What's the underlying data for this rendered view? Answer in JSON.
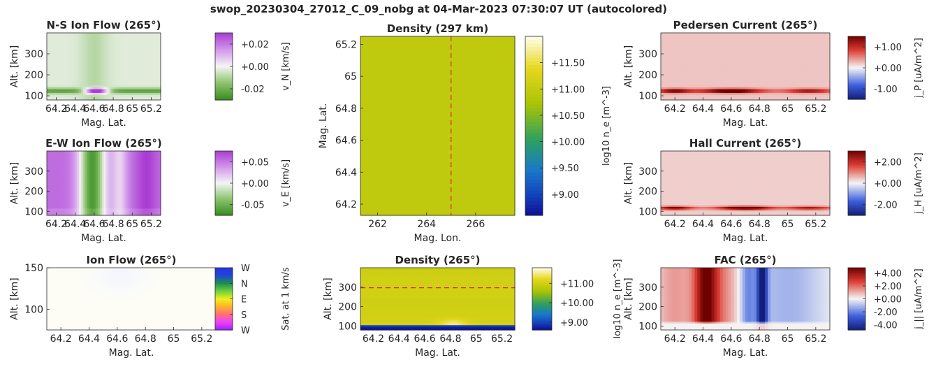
{
  "figure_title": "swop_20230304_27012_C_09_nobg at 04-Mar-2023 07:30:07 UT (autocolored)",
  "chart_data": [
    {
      "id": "ns_ion_flow",
      "type": "heatmap",
      "title": "N-S Ion Flow (265°)",
      "xlabel": "Mag. Lat.",
      "ylabel": "Alt. [km]",
      "xlim": [
        64.1,
        65.3
      ],
      "ylim": [
        80,
        400
      ],
      "xticks": [
        "64.2",
        "64.4",
        "64.6",
        "64.8",
        "65",
        "65.2"
      ],
      "xtick_values": [
        64.2,
        64.4,
        64.6,
        64.8,
        65.0,
        65.2
      ],
      "yticks": [
        "100",
        "200",
        "300"
      ],
      "ytick_values": [
        100,
        200,
        300
      ],
      "colorbar": {
        "label": "v_N [km/s]",
        "ticks": [
          "+0.02",
          "+0.00",
          "-0.02"
        ],
        "tick_values": [
          0.02,
          0.0,
          -0.02
        ],
        "range": [
          -0.03,
          0.03
        ],
        "colormap": "green-white-purple"
      },
      "field": "ns_flow"
    },
    {
      "id": "density_map",
      "type": "heatmap",
      "title": "Density (297 km)",
      "xlabel": "Mag. Lon.",
      "ylabel": "Mag. Lat.",
      "xlim": [
        261.3,
        267.6
      ],
      "ylim": [
        64.13,
        65.25
      ],
      "xticks": [
        "262",
        "264",
        "266"
      ],
      "xtick_values": [
        262,
        264,
        266
      ],
      "yticks": [
        "64.2",
        "64.4",
        "64.6",
        "64.8",
        "65",
        "65.2"
      ],
      "ytick_values": [
        64.2,
        64.4,
        64.6,
        64.8,
        65.0,
        65.2
      ],
      "colorbar": {
        "label": "log10 n_e [m^-3]",
        "ticks": [
          "+11.50",
          "+11.00",
          "+10.50",
          "+10.00",
          "+9.50",
          "+9.00"
        ],
        "tick_values": [
          11.5,
          11.0,
          10.5,
          10.0,
          9.5,
          9.0
        ],
        "range": [
          8.6,
          12.0
        ],
        "colormap": "parula"
      },
      "value": 10.95,
      "marker_line": {
        "axis": "x",
        "value": 265,
        "style": "dashed",
        "color": "#d62728"
      },
      "field": "uniform"
    },
    {
      "id": "pedersen_current",
      "type": "heatmap",
      "title": "Pedersen Current (265°)",
      "xlabel": "Mag. Lat.",
      "ylabel": "Alt. [km]",
      "xlim": [
        64.1,
        65.3
      ],
      "ylim": [
        80,
        400
      ],
      "xticks": [
        "64.2",
        "64.4",
        "64.6",
        "64.8",
        "65",
        "65.2"
      ],
      "xtick_values": [
        64.2,
        64.4,
        64.6,
        64.8,
        65.0,
        65.2
      ],
      "yticks": [
        "100",
        "200",
        "300"
      ],
      "ytick_values": [
        100,
        200,
        300
      ],
      "colorbar": {
        "label": "j_P [uA/m^2]",
        "ticks": [
          "+1.00",
          "+0.00",
          "-1.00"
        ],
        "tick_values": [
          1.0,
          0.0,
          -1.0
        ],
        "range": [
          -1.5,
          1.5
        ],
        "colormap": "blue-white-red"
      },
      "field": "pedersen"
    },
    {
      "id": "ew_ion_flow",
      "type": "heatmap",
      "title": "E-W Ion Flow (265°)",
      "xlabel": "Mag. Lat.",
      "ylabel": "Alt. [km]",
      "xlim": [
        64.1,
        65.3
      ],
      "ylim": [
        80,
        400
      ],
      "xticks": [
        "64.2",
        "64.4",
        "64.6",
        "64.8",
        "65",
        "65.2"
      ],
      "xtick_values": [
        64.2,
        64.4,
        64.6,
        64.8,
        65.0,
        65.2
      ],
      "yticks": [
        "100",
        "200",
        "300"
      ],
      "ytick_values": [
        100,
        200,
        300
      ],
      "colorbar": {
        "label": "v_E [km/s]",
        "ticks": [
          "+0.05",
          "+0.00",
          "-0.05"
        ],
        "tick_values": [
          0.05,
          0.0,
          -0.05
        ],
        "range": [
          -0.075,
          0.075
        ],
        "colormap": "green-white-purple"
      },
      "field": "ew_flow"
    },
    {
      "id": "hall_current",
      "type": "heatmap",
      "title": "Hall Current (265°)",
      "xlabel": "Mag. Lat.",
      "ylabel": "Alt. [km]",
      "xlim": [
        64.1,
        65.3
      ],
      "ylim": [
        80,
        400
      ],
      "xticks": [
        "64.2",
        "64.4",
        "64.6",
        "64.8",
        "65",
        "65.2"
      ],
      "xtick_values": [
        64.2,
        64.4,
        64.6,
        64.8,
        65.0,
        65.2
      ],
      "yticks": [
        "100",
        "200",
        "300"
      ],
      "ytick_values": [
        100,
        200,
        300
      ],
      "colorbar": {
        "label": "j_H [uA/m^2]",
        "ticks": [
          "+2.00",
          "+0.00",
          "-2.00"
        ],
        "tick_values": [
          2.0,
          0.0,
          -2.0
        ],
        "range": [
          -3,
          3
        ],
        "colormap": "blue-white-red"
      },
      "field": "hall"
    },
    {
      "id": "ion_flow_hue",
      "type": "heatmap",
      "title": "Ion Flow (265°)",
      "xlabel": "Mag. Lat.",
      "ylabel": "Alt. [km]",
      "xlim": [
        64.1,
        65.3
      ],
      "ylim": [
        75,
        150
      ],
      "xticks": [
        "64.2",
        "64.4",
        "64.6",
        "64.8",
        "65",
        "65.2"
      ],
      "xtick_values": [
        64.2,
        64.4,
        64.6,
        64.8,
        65.0,
        65.2
      ],
      "yticks": [
        "100",
        "150"
      ],
      "ytick_values": [
        100,
        150
      ],
      "colorbar": {
        "label": "Sat. at 1 km/s",
        "ticks": [
          "W",
          "N",
          "E",
          "S",
          "W"
        ],
        "tick_values": [
          1.0,
          0.75,
          0.5,
          0.25,
          0.0
        ],
        "range": [
          0,
          1
        ],
        "colormap": "direction-hue"
      },
      "field": "ionflow"
    },
    {
      "id": "density_profile",
      "type": "heatmap",
      "title": "Density (265°)",
      "xlabel": "Mag. Lat.",
      "ylabel": "Alt. [km]",
      "xlim": [
        64.1,
        65.3
      ],
      "ylim": [
        80,
        400
      ],
      "xticks": [
        "64.2",
        "64.4",
        "64.6",
        "64.8",
        "65",
        "65.2"
      ],
      "xtick_values": [
        64.2,
        64.4,
        64.6,
        64.8,
        65.0,
        65.2
      ],
      "yticks": [
        "100",
        "200",
        "300"
      ],
      "ytick_values": [
        100,
        200,
        300
      ],
      "colorbar": {
        "label": "log10 n_e [m^-3]",
        "ticks": [
          "+11.00",
          "+10.00",
          "+9.00"
        ],
        "tick_values": [
          11.0,
          10.0,
          9.0
        ],
        "range": [
          8.6,
          11.8
        ],
        "colormap": "parula"
      },
      "marker_line": {
        "axis": "y",
        "value": 297,
        "style": "dashed",
        "color": "#d62728"
      },
      "field": "dens_profile"
    },
    {
      "id": "fac",
      "type": "heatmap",
      "title": "FAC (265°)",
      "xlabel": "Mag. Lat.",
      "ylabel": "Alt. [km]",
      "xlim": [
        64.1,
        65.3
      ],
      "ylim": [
        80,
        400
      ],
      "xticks": [
        "64.2",
        "64.4",
        "64.6",
        "64.8",
        "65",
        "65.2"
      ],
      "xtick_values": [
        64.2,
        64.4,
        64.6,
        64.8,
        65.0,
        65.2
      ],
      "yticks": [
        "100",
        "200",
        "300"
      ],
      "ytick_values": [
        100,
        200,
        300
      ],
      "colorbar": {
        "label": "j_|| [uA/m^2]",
        "ticks": [
          "+4.00",
          "+2.00",
          "+0.00",
          "-2.00",
          "-4.00"
        ],
        "tick_values": [
          4.0,
          2.0,
          0.0,
          -2.0,
          -4.0
        ],
        "range": [
          -4.8,
          4.8
        ],
        "colormap": "blue-white-red"
      },
      "field": "fac"
    }
  ]
}
